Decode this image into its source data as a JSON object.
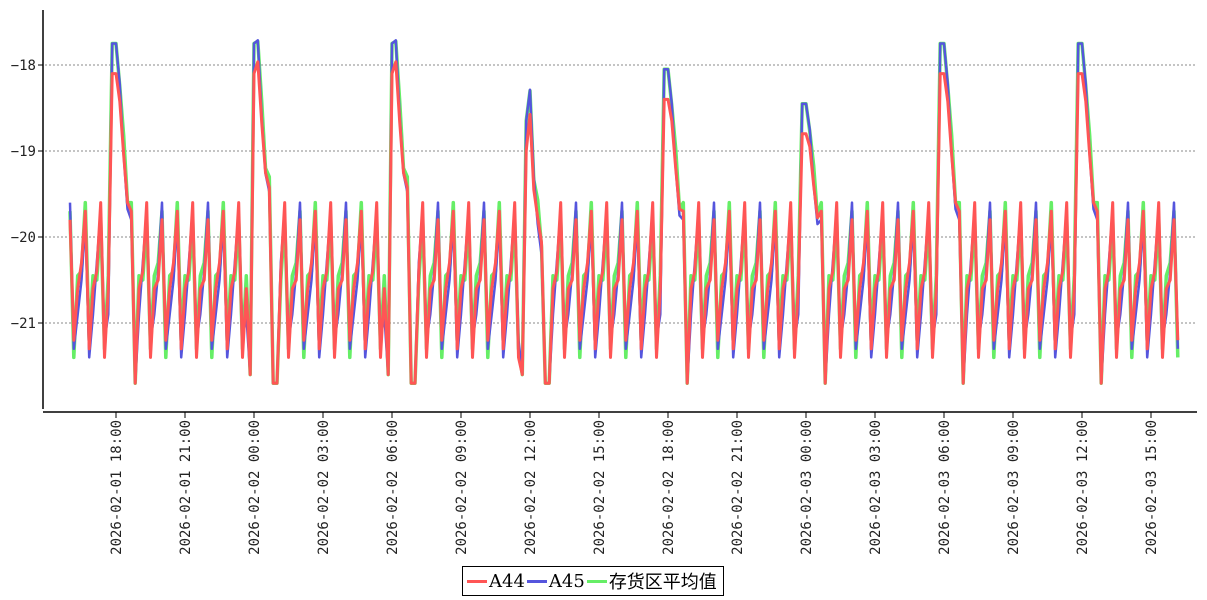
{
  "chart_data": {
    "type": "line",
    "title": "",
    "xlabel": "",
    "ylabel": "",
    "ylim": [
      -22.0,
      -17.36
    ],
    "xlim": [
      "2026-02-01 16:00",
      "2026-02-03 16:30"
    ],
    "y_ticks": [
      -21,
      -20,
      -19,
      -18
    ],
    "y_tick_labels": [
      "−21",
      "−20",
      "−19",
      "−18"
    ],
    "x_ticks": [
      "2026-02-01 18:00",
      "2026-02-01 21:00",
      "2026-02-02 00:00",
      "2026-02-02 03:00",
      "2026-02-02 06:00",
      "2026-02-02 09:00",
      "2026-02-02 12:00",
      "2026-02-02 15:00",
      "2026-02-02 18:00",
      "2026-02-02 21:00",
      "2026-02-03 00:00",
      "2026-02-03 03:00",
      "2026-02-03 06:00",
      "2026-02-03 09:00",
      "2026-02-03 12:00",
      "2026-02-03 15:00"
    ],
    "grid": "horizontal dotted",
    "legend_position": "bottom-center",
    "series": [
      {
        "name": "A44",
        "color": "#ff5555"
      },
      {
        "name": "A45",
        "color": "#5555dd"
      },
      {
        "name": "存货区平均值",
        "color": "#66ee66"
      }
    ],
    "sampling_minutes": 10,
    "cycle_minutes": 40,
    "normal_cycle_range": [
      -21.4,
      -19.8
    ],
    "defrost_peaks": [
      {
        "time": "2026-02-01 17:55",
        "value": -18.1
      },
      {
        "time": "2026-02-02 00:00",
        "value": -18.1
      },
      {
        "time": "2026-02-02 06:00",
        "value": -18.1
      },
      {
        "time": "2026-02-02 11:50",
        "value": -19.0
      },
      {
        "time": "2026-02-02 17:55",
        "value": -18.4
      },
      {
        "time": "2026-02-02 23:55",
        "value": -18.8
      },
      {
        "time": "2026-02-03 05:55",
        "value": -18.1
      },
      {
        "time": "2026-02-03 11:55",
        "value": -18.1
      }
    ]
  }
}
